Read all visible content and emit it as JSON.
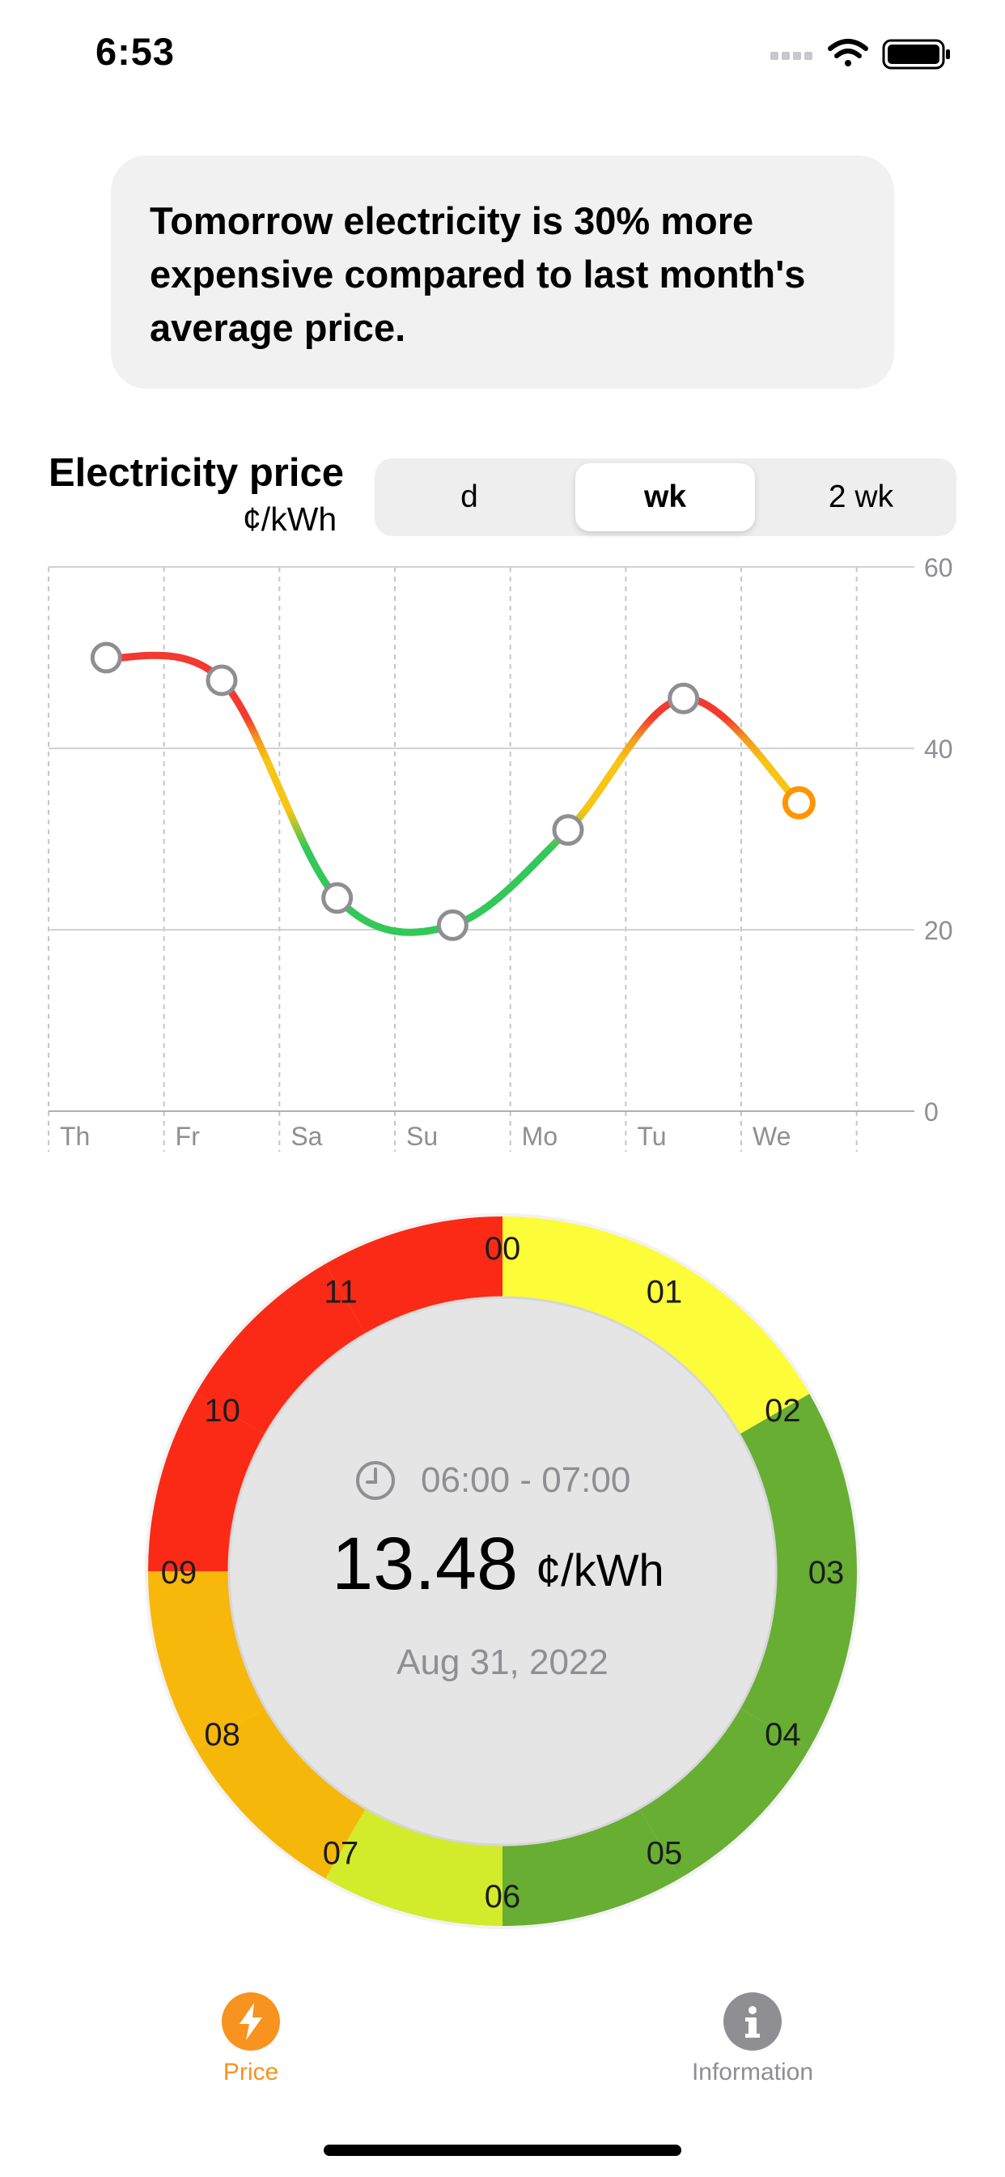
{
  "status_bar": {
    "time": "6:53"
  },
  "banner": {
    "text": "Tomorrow electricity is 30% more expensive compared to last month's average price."
  },
  "chart_header": {
    "title": "Electricity price",
    "unit": "¢/kWh",
    "segments": [
      "d",
      "wk",
      "2 wk"
    ],
    "selected": "wk"
  },
  "chart_data": {
    "type": "line",
    "x": [
      "Th",
      "Fr",
      "Sa",
      "Su",
      "Mo",
      "Tu",
      "We"
    ],
    "ylim": [
      0,
      60
    ],
    "yticks": [
      0,
      20,
      40,
      60
    ],
    "series": [
      {
        "points": [
          [
            0.5,
            50
          ],
          [
            1.5,
            47.5
          ],
          [
            2.5,
            23.5
          ],
          [
            3.5,
            20.5
          ],
          [
            4.5,
            31
          ],
          [
            5.5,
            45.5
          ],
          [
            6.5,
            34
          ]
        ]
      }
    ],
    "grid": true,
    "colors": {
      "high": "#f23a30",
      "mid": "#f7c515",
      "low": "#34c759",
      "current": "#ff9500",
      "marker_stroke": "#8e8e93"
    }
  },
  "hour_wheel": {
    "range": "06:00 - 07:00",
    "price": "13.48",
    "unit": "¢/kWh",
    "date": "Aug 31, 2022",
    "selected_hour": "06",
    "hours": [
      {
        "label": "00",
        "color": "#fdfc38"
      },
      {
        "label": "01",
        "color": "#fdfc38"
      },
      {
        "label": "02",
        "color": "#67ae33"
      },
      {
        "label": "03",
        "color": "#67ae33"
      },
      {
        "label": "04",
        "color": "#67ae33"
      },
      {
        "label": "05",
        "color": "#67ae33"
      },
      {
        "label": "06",
        "color": "#d2eb2b"
      },
      {
        "label": "07",
        "color": "#f6b70b"
      },
      {
        "label": "08",
        "color": "#f8b70b"
      },
      {
        "label": "09",
        "color": "#fa2a16"
      },
      {
        "label": "10",
        "color": "#fa2a16"
      },
      {
        "label": "11",
        "color": "#fa2a16"
      }
    ]
  },
  "tab_bar": {
    "tabs": [
      {
        "label": "Price",
        "icon": "bolt-icon",
        "active": true,
        "color": "#f7931e"
      },
      {
        "label": "Information",
        "icon": "info-icon",
        "active": false,
        "color": "#8e8e93"
      }
    ]
  }
}
